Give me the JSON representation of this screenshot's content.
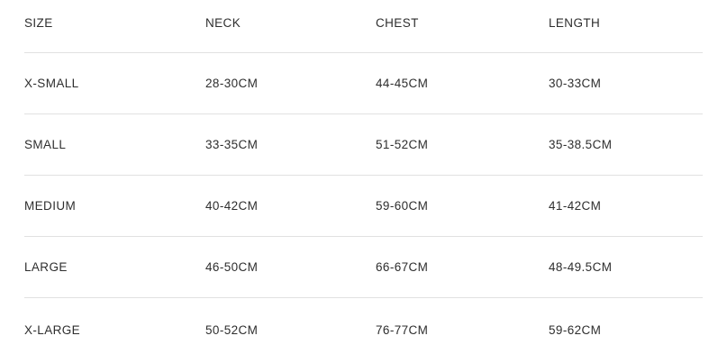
{
  "table": {
    "columns": [
      "SIZE",
      "NECK",
      "CHEST",
      "LENGTH"
    ],
    "rows": [
      [
        "X-SMALL",
        "28-30CM",
        "44-45CM",
        "30-33CM"
      ],
      [
        "SMALL",
        "33-35CM",
        "51-52CM",
        "35-38.5CM"
      ],
      [
        "MEDIUM",
        "40-42CM",
        "59-60CM",
        "41-42CM"
      ],
      [
        "LARGE",
        "46-50CM",
        "66-67CM",
        "48-49.5CM"
      ],
      [
        "X-LARGE",
        "50-52CM",
        "76-77CM",
        "59-62CM"
      ]
    ]
  },
  "colors": {
    "text": "#2e2e2e",
    "divider": "#e1e1e1",
    "background": "#ffffff"
  }
}
